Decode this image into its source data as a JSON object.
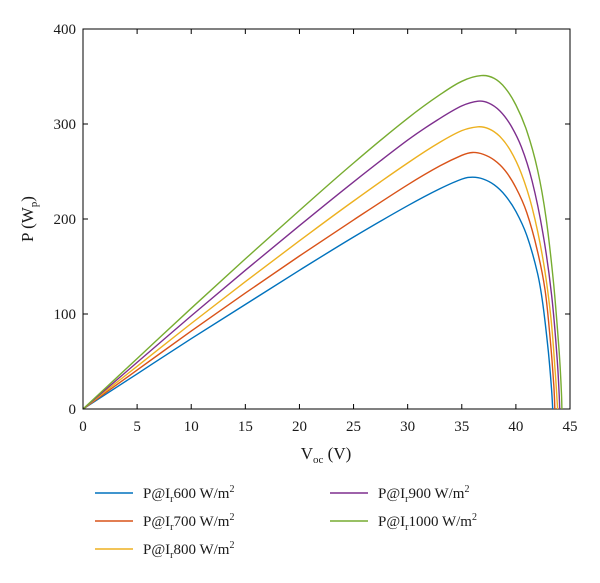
{
  "chart_data": {
    "type": "line",
    "xlabel": {
      "main": "V",
      "sub": "oc",
      "unit": " (V)"
    },
    "ylabel": {
      "main": "P (W",
      "sub": "p",
      "end": ")"
    },
    "xlim": [
      0,
      45
    ],
    "ylim": [
      0,
      400
    ],
    "xticks": [
      0,
      5,
      10,
      15,
      20,
      25,
      30,
      35,
      40,
      45
    ],
    "yticks": [
      0,
      100,
      200,
      300,
      400
    ],
    "grid": false,
    "legend_position": "bottom",
    "series": [
      {
        "name": "P@Ir600 W/m²",
        "label_parts": {
          "pre": "P@I",
          "sub": "r",
          "mid": "600 W/m",
          "sup": "2"
        },
        "color": "#0072BD",
        "points": [
          [
            0,
            0
          ],
          [
            5,
            37
          ],
          [
            10,
            74
          ],
          [
            15,
            110
          ],
          [
            20,
            146
          ],
          [
            25,
            181
          ],
          [
            30,
            214
          ],
          [
            33,
            232
          ],
          [
            35,
            242
          ],
          [
            36,
            244
          ],
          [
            37,
            242
          ],
          [
            38,
            236
          ],
          [
            39,
            225
          ],
          [
            40,
            208
          ],
          [
            41,
            183
          ],
          [
            42,
            143
          ],
          [
            42.5,
            110
          ],
          [
            43,
            60
          ],
          [
            43.3,
            20
          ],
          [
            43.4,
            0
          ]
        ]
      },
      {
        "name": "P@Ir700 W/m²",
        "label_parts": {
          "pre": "P@I",
          "sub": "r",
          "mid": "700 W/m",
          "sup": "2"
        },
        "color": "#D95319",
        "points": [
          [
            0,
            0
          ],
          [
            5,
            41
          ],
          [
            10,
            82
          ],
          [
            15,
            122
          ],
          [
            20,
            161
          ],
          [
            25,
            199
          ],
          [
            30,
            236
          ],
          [
            33,
            256
          ],
          [
            35,
            267
          ],
          [
            36,
            270
          ],
          [
            37,
            268
          ],
          [
            38,
            262
          ],
          [
            39,
            251
          ],
          [
            40,
            233
          ],
          [
            41,
            207
          ],
          [
            42,
            166
          ],
          [
            42.7,
            125
          ],
          [
            43.2,
            70
          ],
          [
            43.5,
            25
          ],
          [
            43.6,
            0
          ]
        ]
      },
      {
        "name": "P@Ir800 W/m²",
        "label_parts": {
          "pre": "P@I",
          "sub": "r",
          "mid": "800 W/m",
          "sup": "2"
        },
        "color": "#EDB120",
        "points": [
          [
            0,
            0
          ],
          [
            5,
            45
          ],
          [
            10,
            90
          ],
          [
            15,
            134
          ],
          [
            20,
            177
          ],
          [
            25,
            219
          ],
          [
            30,
            259
          ],
          [
            33,
            281
          ],
          [
            35,
            293
          ],
          [
            36.5,
            297
          ],
          [
            37.5,
            295
          ],
          [
            38.5,
            287
          ],
          [
            39.5,
            272
          ],
          [
            40.5,
            248
          ],
          [
            41.5,
            212
          ],
          [
            42.5,
            158
          ],
          [
            43.2,
            100
          ],
          [
            43.6,
            45
          ],
          [
            43.8,
            10
          ],
          [
            43.85,
            0
          ]
        ]
      },
      {
        "name": "P@Ir900 W/m²",
        "label_parts": {
          "pre": "P@I",
          "sub": "r",
          "mid": "900 W/m",
          "sup": "2"
        },
        "color": "#7E2F8E",
        "points": [
          [
            0,
            0
          ],
          [
            5,
            49
          ],
          [
            10,
            98
          ],
          [
            15,
            146
          ],
          [
            20,
            193
          ],
          [
            25,
            239
          ],
          [
            30,
            283
          ],
          [
            33,
            306
          ],
          [
            35,
            319
          ],
          [
            36.5,
            324
          ],
          [
            37.5,
            322
          ],
          [
            38.5,
            314
          ],
          [
            39.5,
            299
          ],
          [
            40.5,
            276
          ],
          [
            41.5,
            240
          ],
          [
            42.5,
            185
          ],
          [
            43.3,
            120
          ],
          [
            43.8,
            55
          ],
          [
            44,
            15
          ],
          [
            44.05,
            0
          ]
        ]
      },
      {
        "name": "P@Ir1000 W/m²",
        "label_parts": {
          "pre": "P@I",
          "sub": "r",
          "mid": "1000 W/m",
          "sup": "2"
        },
        "color": "#77AC30",
        "points": [
          [
            0,
            0
          ],
          [
            5,
            53
          ],
          [
            10,
            106
          ],
          [
            15,
            158
          ],
          [
            20,
            209
          ],
          [
            25,
            259
          ],
          [
            30,
            306
          ],
          [
            33,
            331
          ],
          [
            35,
            345
          ],
          [
            36.8,
            351
          ],
          [
            38,
            348
          ],
          [
            39,
            338
          ],
          [
            40,
            320
          ],
          [
            41,
            293
          ],
          [
            42,
            252
          ],
          [
            42.8,
            200
          ],
          [
            43.5,
            130
          ],
          [
            44,
            60
          ],
          [
            44.2,
            20
          ],
          [
            44.25,
            0
          ]
        ]
      }
    ]
  }
}
